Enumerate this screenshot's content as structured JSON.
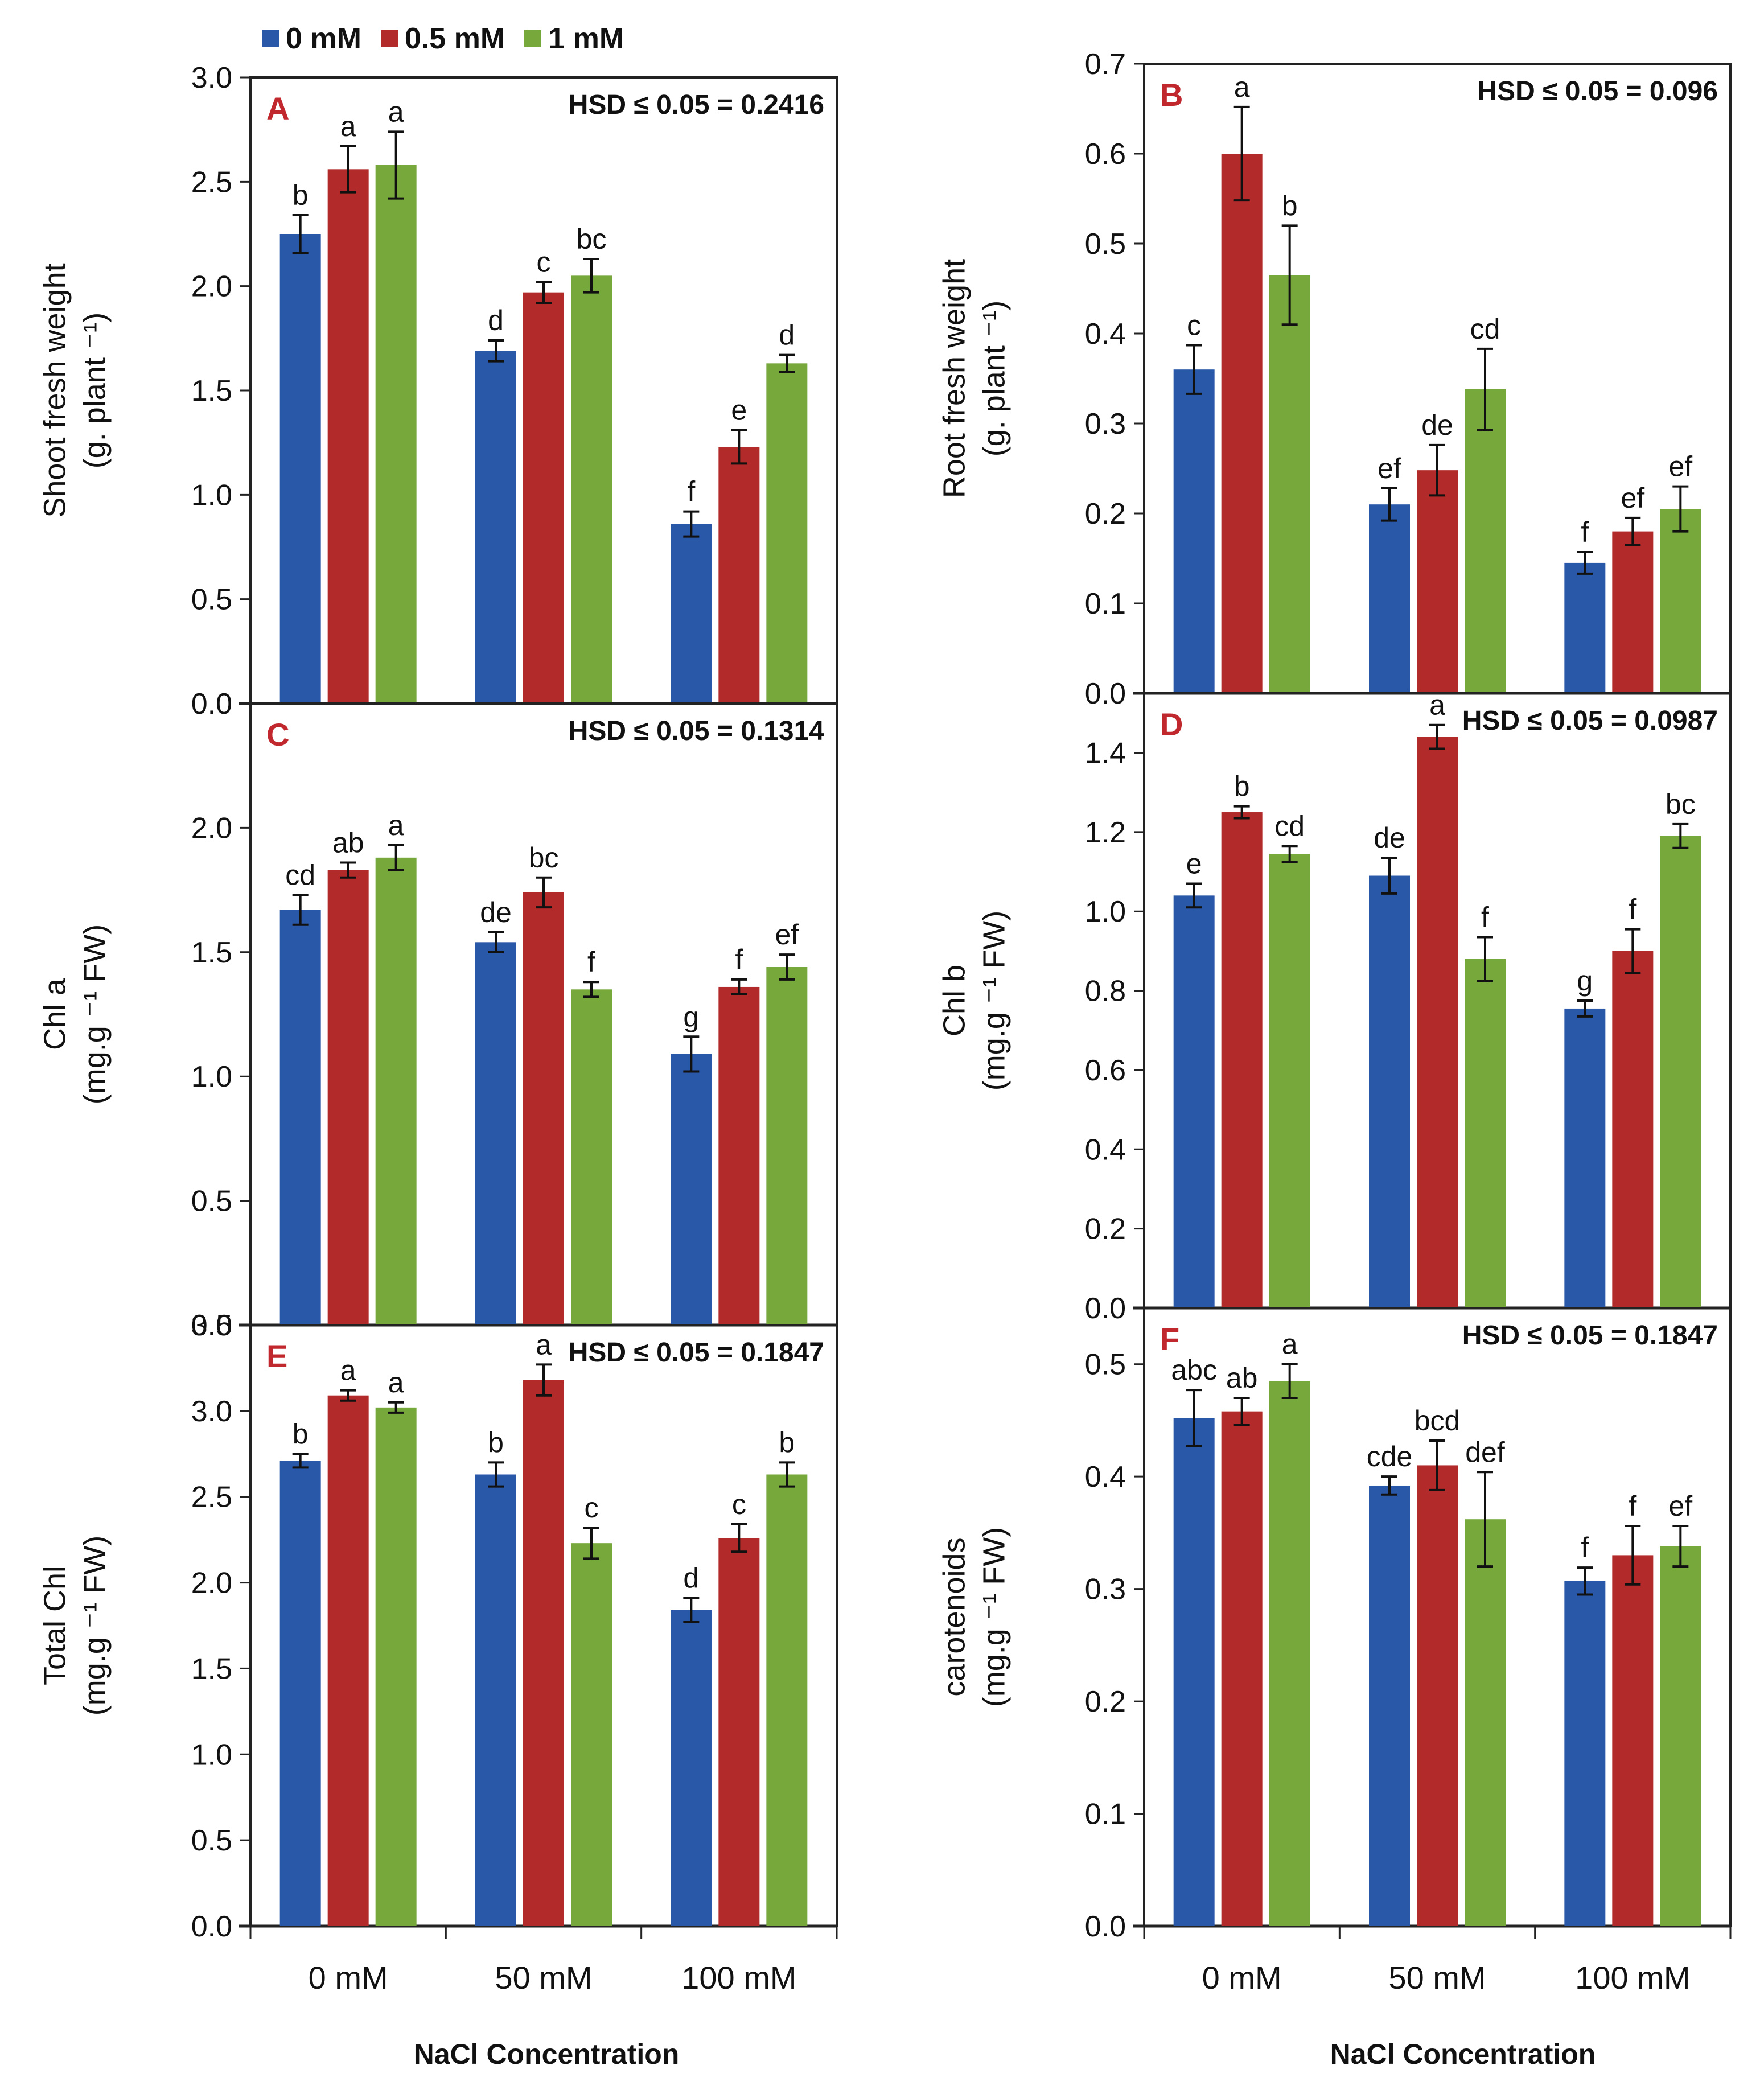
{
  "legend": [
    {
      "label": "0 mM",
      "color": "#2a58a8"
    },
    {
      "label": "0.5 mM",
      "color": "#b22a2a"
    },
    {
      "label": "1 mM",
      "color": "#76a83c"
    }
  ],
  "x_axis_title_left": "NaCl Concentration",
  "x_axis_title_right": "NaCl Concentration",
  "chart_data": [
    {
      "type": "bar",
      "panel": "A",
      "hsd": "HSD ≤ 0.05 = 0.2416",
      "ylabel_line1": "Shoot fresh weight",
      "ylabel_line2": "(g. plant ⁻¹)",
      "categories": [
        "0 mM",
        "50 mM",
        "100 mM"
      ],
      "show_xticks": false,
      "ylim": [
        0,
        3.0
      ],
      "ticks": [
        "0.0",
        "0.5",
        "1.0",
        "1.5",
        "2.0",
        "2.5",
        "3.0"
      ],
      "series": [
        {
          "name": "0 mM",
          "values": [
            2.25,
            1.69,
            0.86
          ],
          "errors": [
            0.09,
            0.05,
            0.06
          ],
          "letters": [
            "b",
            "d",
            "f"
          ]
        },
        {
          "name": "0.5 mM",
          "values": [
            2.56,
            1.97,
            1.23
          ],
          "errors": [
            0.11,
            0.05,
            0.08
          ],
          "letters": [
            "a",
            "c",
            "e"
          ]
        },
        {
          "name": "1 mM",
          "values": [
            2.58,
            2.05,
            1.63
          ],
          "errors": [
            0.16,
            0.08,
            0.04
          ],
          "letters": [
            "a",
            "bc",
            "d"
          ]
        }
      ]
    },
    {
      "type": "bar",
      "panel": "B",
      "hsd": "HSD ≤ 0.05 = 0.096",
      "ylabel_line1": "Root fresh weight",
      "ylabel_line2": "(g. plant ⁻¹)",
      "categories": [
        "0 mM",
        "50 mM",
        "100 mM"
      ],
      "show_xticks": false,
      "ylim": [
        0,
        0.7
      ],
      "ticks": [
        "0.0",
        "0.1",
        "0.2",
        "0.3",
        "0.4",
        "0.5",
        "0.6",
        "0.7"
      ],
      "series": [
        {
          "name": "0 mM",
          "values": [
            0.36,
            0.21,
            0.145
          ],
          "errors": [
            0.027,
            0.018,
            0.012
          ],
          "letters": [
            "c",
            "ef",
            "f"
          ]
        },
        {
          "name": "0.5 mM",
          "values": [
            0.6,
            0.248,
            0.18
          ],
          "errors": [
            0.052,
            0.028,
            0.015
          ],
          "letters": [
            "a",
            "de",
            "ef"
          ]
        },
        {
          "name": "1 mM",
          "values": [
            0.465,
            0.338,
            0.205
          ],
          "errors": [
            0.055,
            0.045,
            0.025
          ],
          "letters": [
            "b",
            "cd",
            "ef"
          ]
        }
      ]
    },
    {
      "type": "bar",
      "panel": "C",
      "hsd": "HSD ≤ 0.05 = 0.1314",
      "ylabel_line1": "Chl a",
      "ylabel_line2": "(mg.g ⁻¹ FW)",
      "categories": [
        "0 mM",
        "50 mM",
        "100 mM"
      ],
      "show_xticks": false,
      "ylim": [
        0,
        2.5
      ],
      "ticks": [
        "0.0",
        "0.5",
        "1.0",
        "1.5",
        "2.0"
      ],
      "series": [
        {
          "name": "0 mM",
          "values": [
            1.67,
            1.54,
            1.09
          ],
          "errors": [
            0.06,
            0.04,
            0.07
          ],
          "letters": [
            "cd",
            "de",
            "g"
          ]
        },
        {
          "name": "0.5 mM",
          "values": [
            1.83,
            1.74,
            1.36
          ],
          "errors": [
            0.03,
            0.06,
            0.03
          ],
          "letters": [
            "ab",
            "bc",
            "f"
          ]
        },
        {
          "name": "1 mM",
          "values": [
            1.88,
            1.35,
            1.44
          ],
          "errors": [
            0.05,
            0.03,
            0.05
          ],
          "letters": [
            "a",
            "f",
            "ef"
          ]
        }
      ]
    },
    {
      "type": "bar",
      "panel": "D",
      "hsd": "HSD ≤ 0.05 = 0.0987",
      "ylabel_line1": "Chl b",
      "ylabel_line2": "(mg.g ⁻¹ FW)",
      "categories": [
        "0 mM",
        "50 mM",
        "100 mM"
      ],
      "show_xticks": false,
      "ylim": [
        0,
        1.55
      ],
      "ticks": [
        "0.0",
        "0.2",
        "0.4",
        "0.6",
        "0.8",
        "1.0",
        "1.2",
        "1.4"
      ],
      "series": [
        {
          "name": "0 mM",
          "values": [
            1.04,
            1.09,
            0.755
          ],
          "errors": [
            0.03,
            0.045,
            0.02
          ],
          "letters": [
            "e",
            "de",
            "g"
          ]
        },
        {
          "name": "0.5 mM",
          "values": [
            1.25,
            1.44,
            0.9
          ],
          "errors": [
            0.015,
            0.03,
            0.055
          ],
          "letters": [
            "b",
            "a",
            "f"
          ]
        },
        {
          "name": "1 mM",
          "values": [
            1.145,
            0.88,
            1.19
          ],
          "errors": [
            0.02,
            0.055,
            0.03
          ],
          "letters": [
            "cd",
            "f",
            "bc"
          ]
        }
      ]
    },
    {
      "type": "bar",
      "panel": "E",
      "hsd": "HSD ≤ 0.05 = 0.1847",
      "ylabel_line1": "Total Chl",
      "ylabel_line2": "(mg.g ⁻¹ FW)",
      "categories": [
        "0 mM",
        "50 mM",
        "100 mM"
      ],
      "show_xticks": true,
      "ylim": [
        0,
        3.5
      ],
      "ticks": [
        "0.0",
        "0.5",
        "1.0",
        "1.5",
        "2.0",
        "2.5",
        "3.0",
        "3.5"
      ],
      "series": [
        {
          "name": "0 mM",
          "values": [
            2.71,
            2.63,
            1.84
          ],
          "errors": [
            0.04,
            0.07,
            0.07
          ],
          "letters": [
            "b",
            "b",
            "d"
          ]
        },
        {
          "name": "0.5 mM",
          "values": [
            3.09,
            3.18,
            2.26
          ],
          "errors": [
            0.03,
            0.09,
            0.08
          ],
          "letters": [
            "a",
            "a",
            "c"
          ]
        },
        {
          "name": "1 mM",
          "values": [
            3.02,
            2.23,
            2.63
          ],
          "errors": [
            0.03,
            0.09,
            0.07
          ],
          "letters": [
            "a",
            "c",
            "b"
          ]
        }
      ]
    },
    {
      "type": "bar",
      "panel": "F",
      "hsd": "HSD ≤ 0.05 = 0.1847",
      "ylabel_line1": "carotenoids",
      "ylabel_line2": "(mg.g ⁻¹ FW)",
      "categories": [
        "0 mM",
        "50 mM",
        "100 mM"
      ],
      "show_xticks": true,
      "ylim": [
        0,
        0.55
      ],
      "ticks": [
        "0.0",
        "0.1",
        "0.2",
        "0.3",
        "0.4",
        "0.5"
      ],
      "series": [
        {
          "name": "0 mM",
          "values": [
            0.452,
            0.392,
            0.307
          ],
          "errors": [
            0.025,
            0.008,
            0.012
          ],
          "letters": [
            "abc",
            "cde",
            "f"
          ]
        },
        {
          "name": "0.5 mM",
          "values": [
            0.458,
            0.41,
            0.33
          ],
          "errors": [
            0.012,
            0.022,
            0.026
          ],
          "letters": [
            "ab",
            "bcd",
            "f"
          ]
        },
        {
          "name": "1 mM",
          "values": [
            0.485,
            0.362,
            0.338
          ],
          "errors": [
            0.015,
            0.042,
            0.018
          ],
          "letters": [
            "a",
            "def",
            "ef"
          ]
        }
      ]
    }
  ]
}
